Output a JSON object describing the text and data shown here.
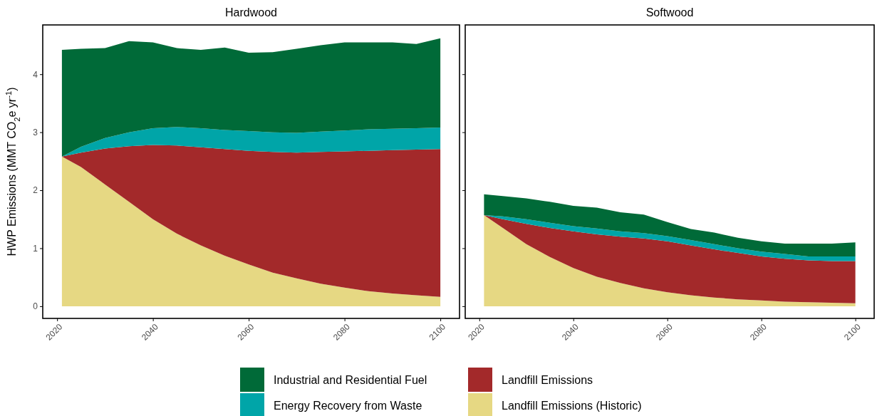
{
  "chart_data": [
    {
      "type": "area",
      "title": "Hardwood",
      "ylabel": "HWP Emissions (MMT CO$_{2}$e yr$^{-1}$)",
      "stacked": true,
      "legend": "bottom",
      "grid": false,
      "x": [
        2021,
        2025,
        2030,
        2035,
        2040,
        2045,
        2050,
        2055,
        2060,
        2065,
        2070,
        2075,
        2080,
        2085,
        2090,
        2095,
        2100
      ],
      "xlim": [
        2017,
        2104
      ],
      "xticks": [
        2020,
        2040,
        2060,
        2080,
        2100
      ],
      "ylim": [
        -0.21,
        4.85
      ],
      "yticks": [
        0,
        1,
        2,
        3,
        4
      ],
      "series": [
        {
          "name": "Landfill Emissions (Historic)",
          "color": "#e6d883",
          "values": [
            2.58,
            2.4,
            2.1,
            1.8,
            1.5,
            1.25,
            1.05,
            0.87,
            0.72,
            0.58,
            0.48,
            0.39,
            0.32,
            0.26,
            0.22,
            0.19,
            0.16
          ]
        },
        {
          "name": "Landfill Emissions",
          "color": "#a3292a",
          "values": [
            0,
            0.25,
            0.62,
            0.96,
            1.28,
            1.52,
            1.69,
            1.84,
            1.96,
            2.08,
            2.17,
            2.27,
            2.35,
            2.42,
            2.47,
            2.51,
            2.55
          ]
        },
        {
          "name": "Energy Recovery from Waste",
          "color": "#00a5a8",
          "values": [
            0,
            0.1,
            0.18,
            0.24,
            0.29,
            0.32,
            0.33,
            0.33,
            0.34,
            0.34,
            0.34,
            0.35,
            0.36,
            0.37,
            0.37,
            0.37,
            0.37
          ]
        },
        {
          "name": "Industrial and Residential Fuel",
          "color": "#006a38",
          "values": [
            1.84,
            1.69,
            1.55,
            1.57,
            1.48,
            1.36,
            1.35,
            1.42,
            1.35,
            1.38,
            1.45,
            1.49,
            1.52,
            1.5,
            1.49,
            1.45,
            1.54
          ]
        }
      ]
    },
    {
      "type": "area",
      "title": "Softwood",
      "stacked": true,
      "grid": false,
      "tick_labels": "x",
      "x": [
        2021,
        2025,
        2030,
        2035,
        2040,
        2045,
        2050,
        2055,
        2060,
        2065,
        2070,
        2075,
        2080,
        2085,
        2090,
        2095,
        2100
      ],
      "xlim": [
        2017,
        2104
      ],
      "xticks": [
        2020,
        2040,
        2060,
        2080,
        2100
      ],
      "ylim": [
        -0.21,
        4.85
      ],
      "yticks": [
        0,
        1,
        2,
        3,
        4
      ],
      "series": [
        {
          "color": "#e6d883",
          "values": [
            1.57,
            1.35,
            1.07,
            0.85,
            0.66,
            0.51,
            0.4,
            0.31,
            0.24,
            0.19,
            0.15,
            0.12,
            0.1,
            0.08,
            0.07,
            0.06,
            0.05
          ]
        },
        {
          "color": "#a3292a",
          "values": [
            0,
            0.15,
            0.35,
            0.5,
            0.63,
            0.73,
            0.8,
            0.86,
            0.88,
            0.86,
            0.83,
            0.8,
            0.76,
            0.74,
            0.72,
            0.72,
            0.73
          ]
        },
        {
          "color": "#00a5a8",
          "values": [
            0,
            0.05,
            0.08,
            0.09,
            0.09,
            0.1,
            0.09,
            0.09,
            0.09,
            0.09,
            0.09,
            0.08,
            0.08,
            0.08,
            0.07,
            0.08,
            0.08
          ]
        },
        {
          "color": "#006a38",
          "values": [
            0.36,
            0.35,
            0.36,
            0.36,
            0.35,
            0.36,
            0.33,
            0.32,
            0.24,
            0.19,
            0.2,
            0.18,
            0.18,
            0.18,
            0.22,
            0.22,
            0.24
          ]
        }
      ]
    }
  ]
}
